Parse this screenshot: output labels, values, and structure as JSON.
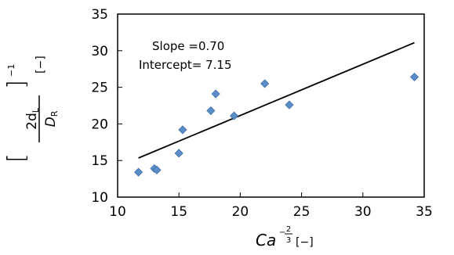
{
  "chart_data": {
    "type": "scatter",
    "x_min": 10,
    "x_max": 35,
    "y_min": 10,
    "y_max": 35,
    "x_ticks": [
      10,
      15,
      20,
      25,
      30,
      35
    ],
    "y_ticks": [
      10,
      15,
      20,
      25,
      30,
      35
    ],
    "grid": false,
    "legend": "none",
    "marker_color": "#5b8ec9",
    "marker_edge_color": "#3c6ea8",
    "marker_shape": "diamond",
    "line_color": "#000000",
    "points": [
      {
        "x": 11.7,
        "y": 13.4
      },
      {
        "x": 13.0,
        "y": 13.9
      },
      {
        "x": 13.2,
        "y": 13.7
      },
      {
        "x": 15.0,
        "y": 16.0
      },
      {
        "x": 15.3,
        "y": 19.2
      },
      {
        "x": 17.6,
        "y": 21.8
      },
      {
        "x": 18.0,
        "y": 24.1
      },
      {
        "x": 19.5,
        "y": 21.1
      },
      {
        "x": 22.0,
        "y": 25.5
      },
      {
        "x": 24.0,
        "y": 22.6
      },
      {
        "x": 34.2,
        "y": 26.4
      }
    ],
    "fit_line": {
      "slope": 0.7,
      "intercept": 7.15,
      "x_start": 11.7,
      "x_end": 34.2
    },
    "annotation": {
      "slope_text": "Slope =0.70",
      "intercept_text": "Intercept= 7.15"
    },
    "xlabel": {
      "main": "Ca",
      "exp_minus": "−",
      "exp_num": "2",
      "exp_den": "3",
      "unit": "[−]"
    },
    "ylabel": {
      "numerator": "2d",
      "numerator_sub": "L",
      "denominator": "D",
      "denominator_sub": "R",
      "exponent": "−1",
      "unit": "[−]"
    }
  }
}
